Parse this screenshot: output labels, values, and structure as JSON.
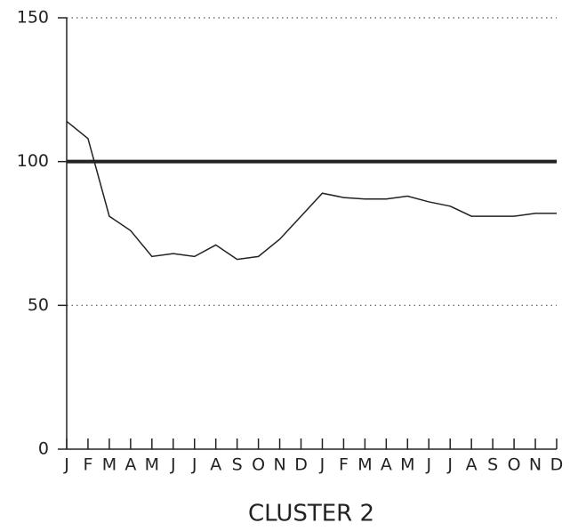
{
  "chart_data": {
    "type": "line",
    "title": "CLUSTER 2",
    "categories": [
      "J",
      "F",
      "M",
      "A",
      "M",
      "J",
      "J",
      "A",
      "S",
      "O",
      "N",
      "D",
      "J",
      "F",
      "M",
      "A",
      "M",
      "J",
      "J",
      "A",
      "S",
      "O",
      "N",
      "D"
    ],
    "series": [
      {
        "name": "Cluster 2",
        "color": "#222222",
        "values": [
          114,
          108,
          81,
          76,
          67,
          68,
          67,
          71,
          66,
          67,
          73,
          81,
          89,
          87.5,
          87,
          87,
          88,
          86,
          84.5,
          81,
          81,
          81,
          82,
          82
        ]
      }
    ],
    "reference_line": 100,
    "ylim": [
      0,
      150
    ],
    "yticks": [
      0,
      50,
      100,
      150
    ],
    "grid": true
  }
}
